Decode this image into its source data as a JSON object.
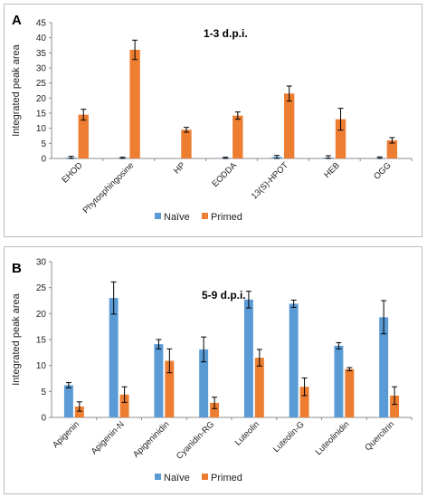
{
  "chart_data": [
    {
      "type": "bar",
      "panel_letter": "A",
      "title": "1-3 d.p.i.",
      "ylabel": "Integrated peak area",
      "xlabel": "",
      "ylim": [
        0,
        45
      ],
      "yticks": [
        0,
        5,
        10,
        15,
        20,
        25,
        30,
        35,
        40,
        45
      ],
      "grid": false,
      "legend_position": "bottom",
      "categories": [
        "EHOD",
        "Phytosphingosine",
        "HP",
        "EODDA",
        "13(S)-HPOT",
        "HEB",
        "OGG"
      ],
      "series": [
        {
          "name": "Naïve",
          "color": "#5b9bd5",
          "values": [
            0.3,
            0.2,
            0,
            0.2,
            0.5,
            0.3,
            0.2
          ],
          "errors": [
            0.4,
            0.2,
            0,
            0.2,
            0.5,
            0.6,
            0.3
          ]
        },
        {
          "name": "Primed",
          "color": "#ed7d31",
          "values": [
            14.5,
            36,
            9.5,
            14.2,
            21.5,
            13,
            6
          ],
          "errors": [
            1.8,
            3.2,
            0.8,
            1.2,
            2.5,
            3.6,
            0.9
          ]
        }
      ]
    },
    {
      "type": "bar",
      "panel_letter": "B",
      "title": "5-9 d.p.i.",
      "ylabel": "Integrated peak area",
      "xlabel": "",
      "ylim": [
        0,
        30
      ],
      "yticks": [
        0,
        5,
        10,
        15,
        20,
        25,
        30
      ],
      "grid": false,
      "legend_position": "bottom",
      "categories": [
        "Apigenin",
        "Apigenin-N",
        "Apigeninidin",
        "Cyanidin-RG",
        "Luteolin",
        "Luteolin-G",
        "Luteolinidin",
        "Quercitrin"
      ],
      "series": [
        {
          "name": "Naïve",
          "color": "#5b9bd5",
          "values": [
            6.2,
            23,
            14.1,
            13.1,
            22.7,
            21.9,
            13.8,
            19.3
          ],
          "errors": [
            0.5,
            3.1,
            0.9,
            2.4,
            1.6,
            0.7,
            0.6,
            3.2
          ]
        },
        {
          "name": "Primed",
          "color": "#ed7d31",
          "values": [
            2.1,
            4.4,
            10.9,
            2.8,
            11.5,
            5.9,
            9.3,
            4.2
          ],
          "errors": [
            0.9,
            1.5,
            2.3,
            1.1,
            1.6,
            1.7,
            0.3,
            1.7
          ]
        }
      ]
    }
  ]
}
